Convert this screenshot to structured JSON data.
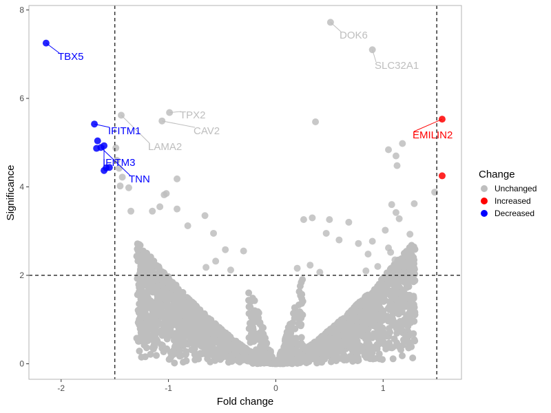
{
  "chart_data": {
    "type": "scatter",
    "title": "",
    "xlabel": "Fold change",
    "ylabel": "Significance",
    "xlim": [
      -2.3,
      1.73
    ],
    "ylim": [
      -0.35,
      8.1
    ],
    "x_ticks": [
      -2,
      -1,
      0,
      1
    ],
    "y_ticks": [
      0,
      2,
      4,
      6,
      8
    ],
    "threshold_lines": {
      "x": [
        -1.5,
        1.5
      ],
      "y": [
        2
      ]
    },
    "grid": false,
    "legend": {
      "title": "Change",
      "position": "right",
      "entries": [
        {
          "name": "Unchanged",
          "color": "#bebebe"
        },
        {
          "name": "Increased",
          "color": "#ff0000"
        },
        {
          "name": "Decreased",
          "color": "#0000ff"
        }
      ]
    },
    "series": [
      {
        "name": "Unchanged",
        "color": "#bebebe",
        "points": [
          {
            "x": 0.51,
            "y": 7.72,
            "label": "DOK6"
          },
          {
            "x": 0.9,
            "y": 7.1,
            "label": "SLC32A1"
          },
          {
            "x": -0.99,
            "y": 5.68,
            "label": "TPX2"
          },
          {
            "x": -1.06,
            "y": 5.49,
            "label": "CAV2"
          },
          {
            "x": -1.44,
            "y": 5.62,
            "label": "LAMA2"
          },
          {
            "x": 0.37,
            "y": 5.47
          },
          {
            "x": 1.18,
            "y": 4.98
          },
          {
            "x": 1.05,
            "y": 4.84
          },
          {
            "x": 1.12,
            "y": 4.7
          },
          {
            "x": 1.13,
            "y": 4.48
          },
          {
            "x": -1.49,
            "y": 4.88
          },
          {
            "x": -1.48,
            "y": 4.6
          },
          {
            "x": -1.46,
            "y": 4.42
          },
          {
            "x": -1.43,
            "y": 4.22
          },
          {
            "x": -1.45,
            "y": 4.02
          },
          {
            "x": -1.37,
            "y": 3.98
          },
          {
            "x": -0.92,
            "y": 4.18
          },
          {
            "x": -1.02,
            "y": 3.85
          },
          {
            "x": -1.04,
            "y": 3.82
          },
          {
            "x": -1.08,
            "y": 3.55
          },
          {
            "x": -0.92,
            "y": 3.5
          },
          {
            "x": -1.15,
            "y": 3.45
          },
          {
            "x": -1.35,
            "y": 3.45
          },
          {
            "x": -0.66,
            "y": 3.35
          },
          {
            "x": -0.82,
            "y": 3.12
          },
          {
            "x": -0.58,
            "y": 2.95
          },
          {
            "x": 0.34,
            "y": 3.3
          },
          {
            "x": 0.26,
            "y": 3.26
          },
          {
            "x": 0.5,
            "y": 3.26
          },
          {
            "x": 0.68,
            "y": 3.2
          },
          {
            "x": 1.08,
            "y": 3.6
          },
          {
            "x": 1.12,
            "y": 3.42
          },
          {
            "x": 1.15,
            "y": 3.28
          },
          {
            "x": 1.29,
            "y": 3.62
          },
          {
            "x": 1.25,
            "y": 2.93
          },
          {
            "x": 1.48,
            "y": 3.88
          },
          {
            "x": 1.02,
            "y": 3.02
          },
          {
            "x": 0.9,
            "y": 2.77
          },
          {
            "x": 0.77,
            "y": 2.72
          },
          {
            "x": 1.05,
            "y": 2.62
          },
          {
            "x": 1.07,
            "y": 2.52
          },
          {
            "x": 1.11,
            "y": 2.35
          },
          {
            "x": 0.59,
            "y": 2.8
          },
          {
            "x": 0.47,
            "y": 2.95
          },
          {
            "x": -0.47,
            "y": 2.58
          },
          {
            "x": -0.3,
            "y": 2.55
          },
          {
            "x": -0.56,
            "y": 2.32
          },
          {
            "x": -0.65,
            "y": 2.18
          },
          {
            "x": -0.42,
            "y": 2.12
          },
          {
            "x": 0.2,
            "y": 2.16
          },
          {
            "x": 0.32,
            "y": 2.23
          },
          {
            "x": 0.41,
            "y": 2.07
          },
          {
            "x": 0.86,
            "y": 2.48
          },
          {
            "x": 0.95,
            "y": 2.2
          },
          {
            "x": 0.84,
            "y": 2.1
          }
        ]
      },
      {
        "name": "Increased",
        "color": "#ff0000",
        "points": [
          {
            "x": 1.55,
            "y": 5.53,
            "label": "EMILIN2"
          },
          {
            "x": 1.55,
            "y": 4.25
          }
        ]
      },
      {
        "name": "Decreased",
        "color": "#0000ff",
        "points": [
          {
            "x": -2.14,
            "y": 7.25,
            "label": "TBX5"
          },
          {
            "x": -1.69,
            "y": 5.42,
            "label": "IFITM1"
          },
          {
            "x": -1.6,
            "y": 4.93,
            "label": "IFITM3"
          },
          {
            "x": -1.63,
            "y": 4.89,
            "label": "TNN"
          },
          {
            "x": -1.66,
            "y": 5.04
          },
          {
            "x": -1.67,
            "y": 4.87
          },
          {
            "x": -1.58,
            "y": 4.43
          },
          {
            "x": -1.55,
            "y": 4.44
          },
          {
            "x": -1.6,
            "y": 4.37
          }
        ]
      }
    ],
    "labels": [
      {
        "text": "DOK6",
        "color": "#bebebe"
      },
      {
        "text": "SLC32A1",
        "color": "#bebebe"
      },
      {
        "text": "TPX2",
        "color": "#bebebe"
      },
      {
        "text": "CAV2",
        "color": "#bebebe"
      },
      {
        "text": "LAMA2",
        "color": "#bebebe"
      },
      {
        "text": "TBX5",
        "color": "#0000ff"
      },
      {
        "text": "IFITM1",
        "color": "#0000ff"
      },
      {
        "text": "IFITM3",
        "color": "#0000ff"
      },
      {
        "text": "TNN",
        "color": "#0000ff"
      },
      {
        "text": "EMILIN2",
        "color": "#ff0000"
      }
    ]
  }
}
